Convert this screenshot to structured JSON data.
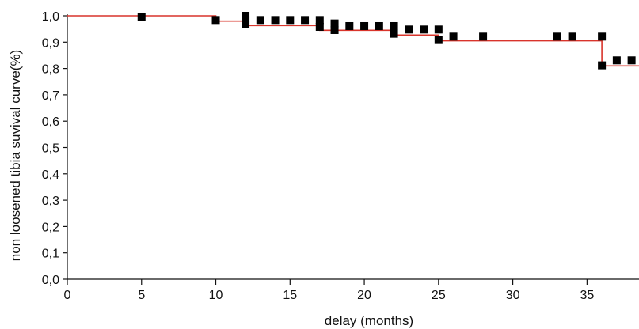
{
  "chart_data": {
    "type": "line",
    "title": "",
    "xlabel": "delay (months)",
    "ylabel": "non loosened tibia suvival curve(%)",
    "xlim": [
      0,
      38.5
    ],
    "ylim": [
      0,
      1.0
    ],
    "xticks": [
      0,
      5,
      10,
      15,
      20,
      25,
      30,
      35
    ],
    "xtick_labels": [
      "0",
      "5",
      "10",
      "15",
      "20",
      "25",
      "30",
      "35"
    ],
    "yticks": [
      0,
      0.1,
      0.2,
      0.3,
      0.4,
      0.5,
      0.6,
      0.7,
      0.8,
      0.9,
      1.0
    ],
    "ytick_labels": [
      "0,0",
      "0,1",
      "0,2",
      "0,3",
      "0,4",
      "0,5",
      "0,6",
      "0,7",
      "0,8",
      "0,9",
      "1,0"
    ],
    "grid": false,
    "series": [
      {
        "kind": "step-line",
        "color": "#d9342b",
        "points": [
          [
            0,
            1.0
          ],
          [
            10,
            1.0
          ],
          [
            10,
            0.98
          ],
          [
            12,
            0.98
          ],
          [
            12,
            0.963
          ],
          [
            17,
            0.963
          ],
          [
            17,
            0.945
          ],
          [
            22,
            0.945
          ],
          [
            22,
            0.927
          ],
          [
            25,
            0.927
          ],
          [
            25,
            0.905
          ],
          [
            36,
            0.905
          ],
          [
            36,
            0.81
          ],
          [
            38.5,
            0.81
          ]
        ]
      },
      {
        "kind": "censored-markers",
        "color": "#000000",
        "marker": "square",
        "points": [
          [
            5,
            0.997
          ],
          [
            10,
            0.984
          ],
          [
            12,
            1.0
          ],
          [
            12,
            0.984
          ],
          [
            12,
            0.968
          ],
          [
            13,
            0.984
          ],
          [
            14,
            0.984
          ],
          [
            15,
            0.984
          ],
          [
            16,
            0.984
          ],
          [
            17,
            0.984
          ],
          [
            17,
            0.958
          ],
          [
            18,
            0.971
          ],
          [
            18,
            0.946
          ],
          [
            19,
            0.961
          ],
          [
            20,
            0.961
          ],
          [
            21,
            0.961
          ],
          [
            22,
            0.961
          ],
          [
            22,
            0.932
          ],
          [
            23,
            0.948
          ],
          [
            24,
            0.948
          ],
          [
            25,
            0.948
          ],
          [
            25,
            0.908
          ],
          [
            26,
            0.921
          ],
          [
            28,
            0.921
          ],
          [
            33,
            0.921
          ],
          [
            34,
            0.921
          ],
          [
            36,
            0.921
          ],
          [
            36,
            0.812
          ],
          [
            37,
            0.831
          ],
          [
            38,
            0.831
          ]
        ]
      }
    ]
  }
}
